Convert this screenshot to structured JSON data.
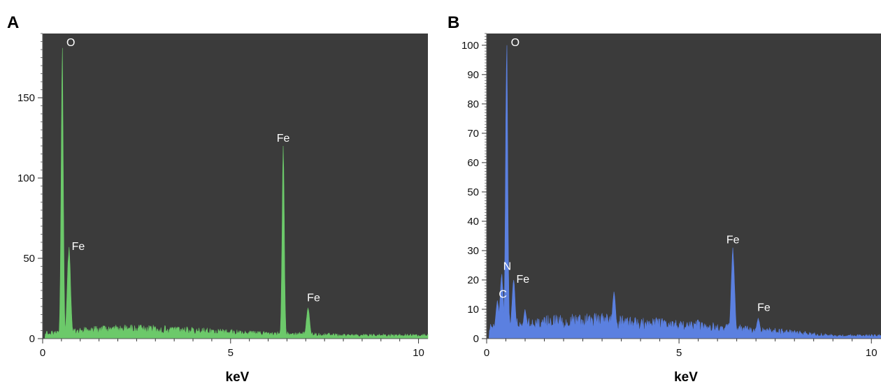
{
  "chart_data": [
    {
      "panel": "A",
      "type": "area",
      "xlabel": "keV",
      "ylabel": "",
      "xlim": [
        0,
        10.25
      ],
      "ylim": [
        0,
        190
      ],
      "xticks": [
        0,
        5,
        10
      ],
      "yticks": [
        0,
        50,
        100,
        150
      ],
      "background": "#3b3b3b",
      "color": "#6cc96a",
      "peaks": [
        {
          "label": "O",
          "x": 0.52,
          "y": 181
        },
        {
          "label": "Fe",
          "x": 0.7,
          "y": 57
        },
        {
          "label": "Fe",
          "x": 6.4,
          "y": 120
        },
        {
          "label": "Fe",
          "x": 7.06,
          "y": 19
        }
      ],
      "baseline": [
        [
          0,
          3
        ],
        [
          1,
          5
        ],
        [
          2,
          6
        ],
        [
          3,
          6
        ],
        [
          4,
          5
        ],
        [
          5,
          4
        ],
        [
          6,
          3
        ],
        [
          7,
          3
        ],
        [
          8,
          2
        ],
        [
          9,
          2
        ],
        [
          10,
          2
        ],
        [
          10.25,
          2
        ]
      ]
    },
    {
      "panel": "B",
      "type": "area",
      "xlabel": "keV",
      "ylabel": "",
      "xlim": [
        0,
        10.25
      ],
      "ylim": [
        0,
        104
      ],
      "xticks": [
        0,
        5,
        10
      ],
      "yticks": [
        0,
        10,
        20,
        30,
        40,
        50,
        60,
        70,
        80,
        90,
        100
      ],
      "background": "#3b3b3b",
      "color": "#5b80e0",
      "peaks": [
        {
          "label": "C",
          "x": 0.28,
          "y": 13
        },
        {
          "label": "N",
          "x": 0.39,
          "y": 22
        },
        {
          "label": "O",
          "x": 0.52,
          "y": 100
        },
        {
          "label": "Fe",
          "x": 0.7,
          "y": 20
        },
        {
          "label": "Fe",
          "x": 6.4,
          "y": 31
        },
        {
          "label": "Fe",
          "x": 7.06,
          "y": 7
        }
      ],
      "unlabeled_peaks": [
        {
          "x": 3.31,
          "y": 16
        },
        {
          "x": 1.0,
          "y": 10
        }
      ],
      "baseline": [
        [
          0,
          4
        ],
        [
          1,
          5
        ],
        [
          2,
          6
        ],
        [
          3,
          6
        ],
        [
          4,
          5
        ],
        [
          5,
          5
        ],
        [
          6,
          4
        ],
        [
          7,
          3
        ],
        [
          8,
          2
        ],
        [
          9,
          1
        ],
        [
          10,
          1
        ],
        [
          10.25,
          1
        ]
      ]
    }
  ]
}
